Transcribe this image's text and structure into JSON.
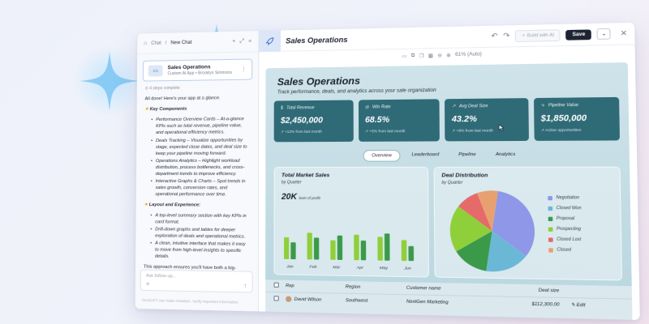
{
  "chat": {
    "breadcrumb_root": "Chat",
    "breadcrumb_current": "New Chat",
    "app_title": "Sales Operations",
    "app_subtitle": "Custom AI App • Brooklyn Simmons",
    "steps": "4 steps complete",
    "intro": "All done! Here's your app at a glance.",
    "section1": "Key Components",
    "items1": [
      "Performance Overview Cards – At-a-glance KPIs such as total revenue, pipeline value, and operational efficiency metrics.",
      "Deals Tracking – Visualize opportunities by stage, expected close dates, and deal size to keep your pipeline moving forward.",
      "Operations Analytics – Highlight workload distribution, process bottlenecks, and cross-department trends to improve efficiency.",
      "Interactive Graphs & Charts – Spot trends in sales growth, conversion rates, and operational performance over time."
    ],
    "section2": "Layout and Experience:",
    "items2": [
      "A top-level summary section with key KPIs in card format.",
      "Drill-down graphs and tables for deeper exploration of deals and operational metrics.",
      "A clean, intuitive interface that makes it easy to move from high-level insights to specific details."
    ],
    "closing": "This approach ensures you'll have both a big-picture view and the flexibility to investigate details—helping",
    "input_placeholder": "Ask follow-up...",
    "footer": "OmniGPT can make mistakes. Verify important information."
  },
  "header": {
    "title": "Sales Operations",
    "build_placeholder": "Build with AI",
    "save_label": "Save",
    "zoom": "61% (Auto)"
  },
  "dashboard": {
    "title": "Sales Operations",
    "subtitle": "Track performance, deals, and analytics across your sale organization",
    "kpis": [
      {
        "label": "Total Revenue",
        "value": "$2,450,000",
        "sub": "↗ +12% from last month"
      },
      {
        "label": "Win Rate",
        "value": "68.5%",
        "sub": "↗ +5% from last month"
      },
      {
        "label": "Avg Deal Size",
        "value": "43.2%",
        "sub": "↗ +8% from last month"
      },
      {
        "label": "Pipeline Value",
        "value": "$1,850,000",
        "sub": "↗ Active opportunities"
      }
    ],
    "tabs": [
      "Overview",
      "Leaderboard",
      "Pipeline",
      "Analytics"
    ],
    "bar_panel": {
      "title": "Total Market Sales",
      "sub": "by Quarter",
      "big": "20K",
      "big_sub": "Sum of profit"
    },
    "pie_panel": {
      "title": "Deal Distribution",
      "sub": "by Quarter"
    },
    "table": {
      "headers": [
        "Rep",
        "Region",
        "Customer name",
        "Deal size"
      ],
      "row": {
        "rep": "David Wilson",
        "region": "Southwest",
        "customer": "NextGen Marketing",
        "deal": "$112,300.00",
        "action": "Edit"
      }
    }
  },
  "chart_data": [
    {
      "type": "bar",
      "title": "Total Market Sales",
      "subtitle": "by Quarter",
      "categories": [
        "Jan",
        "Feb",
        "Mar",
        "Apr",
        "May",
        "Jun"
      ],
      "series": [
        {
          "values": [
            0.45,
            0.55,
            0.4,
            0.52,
            0.48,
            0.42
          ],
          "color": "#8fcf3a"
        },
        {
          "values": [
            0.35,
            0.45,
            0.5,
            0.4,
            0.55,
            0.3
          ],
          "color": "#3a9a4a"
        }
      ]
    },
    {
      "type": "pie",
      "title": "Deal Distribution",
      "subtitle": "by Quarter",
      "categories": [
        "Negotiation",
        "Closed Won",
        "Proposal",
        "Prospecting",
        "Closed Lost",
        "Closed"
      ],
      "values": [
        33,
        17,
        14,
        19,
        9,
        8
      ],
      "colors": [
        "#8f97e8",
        "#6bb8d6",
        "#3a9a4a",
        "#8fcf3a",
        "#e56a6a",
        "#e8a070"
      ]
    }
  ]
}
